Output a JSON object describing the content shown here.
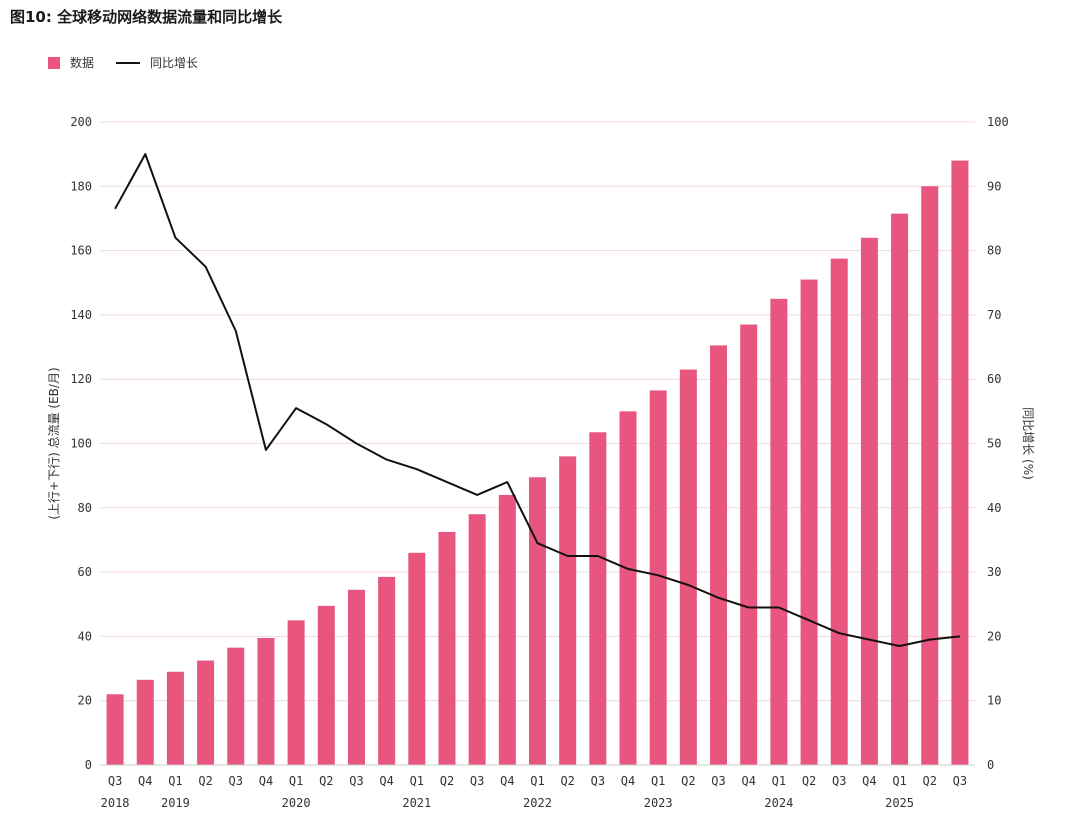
{
  "title": "图10: 全球移动网络数据流量和同比增长",
  "legend": {
    "bar_label": "数据",
    "line_label": "同比增长"
  },
  "colors": {
    "bar": "#E8557E",
    "line": "#111111",
    "grid": "#f0d9e0",
    "right_axis_text": "#8a2a4a"
  },
  "chart_data": {
    "type": "bar",
    "categories": [
      "Q3",
      "Q4",
      "Q1",
      "Q2",
      "Q3",
      "Q4",
      "Q1",
      "Q2",
      "Q3",
      "Q4",
      "Q1",
      "Q2",
      "Q3",
      "Q4",
      "Q1",
      "Q2",
      "Q3",
      "Q4",
      "Q1",
      "Q2",
      "Q3",
      "Q4",
      "Q1",
      "Q2",
      "Q3",
      "Q4",
      "Q1",
      "Q2",
      "Q3"
    ],
    "years": [
      {
        "label": "2018",
        "index": 0
      },
      {
        "label": "2019",
        "index": 2
      },
      {
        "label": "2020",
        "index": 6
      },
      {
        "label": "2021",
        "index": 10
      },
      {
        "label": "2022",
        "index": 14
      },
      {
        "label": "2023",
        "index": 18
      },
      {
        "label": "2024",
        "index": 22
      },
      {
        "label": "2025",
        "index": 26
      }
    ],
    "series": [
      {
        "name": "数据",
        "type": "bar",
        "axis": "left",
        "values": [
          22,
          26.5,
          29,
          32.5,
          36.5,
          39.5,
          45,
          49.5,
          54.5,
          58.5,
          66,
          72.5,
          78,
          84,
          89.5,
          96,
          103.5,
          110,
          116.5,
          123,
          130.5,
          137,
          145,
          151,
          157.5,
          164,
          171.5,
          180,
          188
        ]
      },
      {
        "name": "同比增长",
        "type": "line",
        "axis": "right",
        "values": [
          86.5,
          95,
          82,
          77.5,
          67.5,
          49,
          55.5,
          53,
          50,
          47.5,
          46,
          44,
          42,
          44,
          34.5,
          32.5,
          32.5,
          30.5,
          29.5,
          28,
          26,
          24.5,
          24.5,
          22.5,
          20.5,
          19.5,
          18.5,
          19.5,
          20
        ]
      }
    ],
    "ylabel": "(上行+下行) 总流量 (EB/月)",
    "y2label": "同比增长 (%)",
    "ylim": [
      0,
      200
    ],
    "y2lim": [
      0,
      100
    ],
    "yticks": [
      0,
      20,
      40,
      60,
      80,
      100,
      120,
      140,
      160,
      180,
      200
    ],
    "y2ticks": [
      0,
      10,
      20,
      30,
      40,
      50,
      60,
      70,
      80,
      90,
      100
    ],
    "grid": true,
    "legend_position": "top-left"
  }
}
